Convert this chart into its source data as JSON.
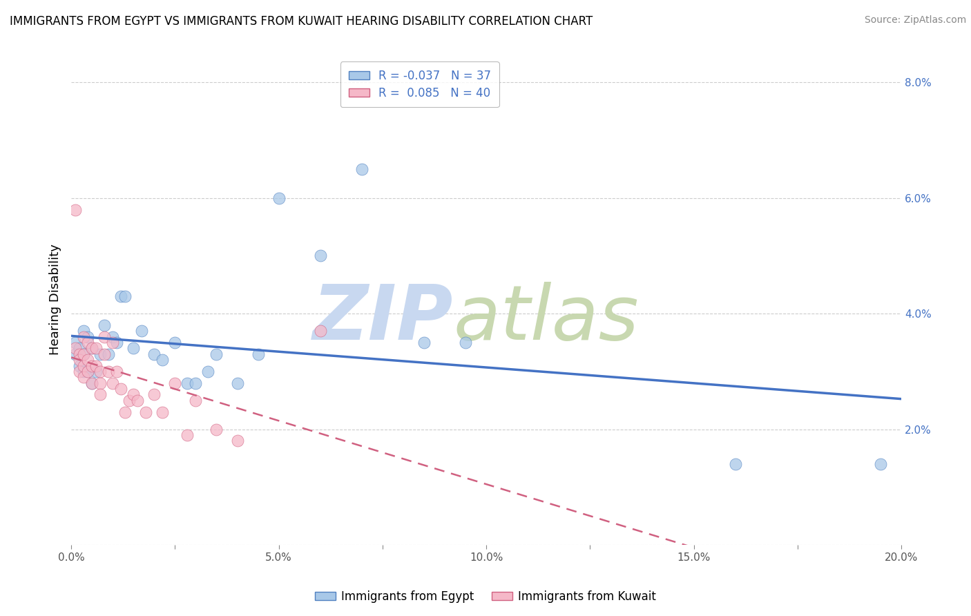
{
  "title": "IMMIGRANTS FROM EGYPT VS IMMIGRANTS FROM KUWAIT HEARING DISABILITY CORRELATION CHART",
  "source": "Source: ZipAtlas.com",
  "legend_bottom": [
    "Immigrants from Egypt",
    "Immigrants from Kuwait"
  ],
  "ylabel": "Hearing Disability",
  "xlim": [
    0.0,
    0.2
  ],
  "ylim": [
    0.0,
    0.085
  ],
  "xticks": [
    0.0,
    0.025,
    0.05,
    0.075,
    0.1,
    0.125,
    0.15,
    0.175,
    0.2
  ],
  "xtick_labels_major": [
    "0.0%",
    "",
    "5.0%",
    "",
    "10.0%",
    "",
    "15.0%",
    "",
    "20.0%"
  ],
  "yticks": [
    0.0,
    0.02,
    0.04,
    0.06,
    0.08
  ],
  "ytick_labels": [
    "",
    "2.0%",
    "4.0%",
    "6.0%",
    "8.0%"
  ],
  "egypt_R": -0.037,
  "egypt_N": 37,
  "kuwait_R": 0.085,
  "kuwait_N": 40,
  "egypt_color": "#a8c8e8",
  "kuwait_color": "#f5b8c8",
  "egypt_edge_color": "#5080c0",
  "kuwait_edge_color": "#d06080",
  "egypt_line_color": "#4472c4",
  "kuwait_line_color": "#d06080",
  "watermark_zip_color": "#c8d8f0",
  "watermark_atlas_color": "#c8d8b0",
  "egypt_x": [
    0.001,
    0.001,
    0.002,
    0.002,
    0.003,
    0.003,
    0.003,
    0.004,
    0.004,
    0.005,
    0.005,
    0.006,
    0.007,
    0.008,
    0.009,
    0.01,
    0.011,
    0.012,
    0.013,
    0.015,
    0.017,
    0.02,
    0.022,
    0.025,
    0.028,
    0.03,
    0.033,
    0.035,
    0.04,
    0.045,
    0.05,
    0.06,
    0.07,
    0.085,
    0.095,
    0.16,
    0.195
  ],
  "egypt_y": [
    0.035,
    0.033,
    0.034,
    0.031,
    0.037,
    0.033,
    0.03,
    0.036,
    0.03,
    0.034,
    0.028,
    0.03,
    0.033,
    0.038,
    0.033,
    0.036,
    0.035,
    0.043,
    0.043,
    0.034,
    0.037,
    0.033,
    0.032,
    0.035,
    0.028,
    0.028,
    0.03,
    0.033,
    0.028,
    0.033,
    0.06,
    0.05,
    0.065,
    0.035,
    0.035,
    0.014,
    0.014
  ],
  "kuwait_x": [
    0.001,
    0.001,
    0.002,
    0.002,
    0.002,
    0.003,
    0.003,
    0.003,
    0.003,
    0.004,
    0.004,
    0.004,
    0.005,
    0.005,
    0.005,
    0.006,
    0.006,
    0.007,
    0.007,
    0.007,
    0.008,
    0.008,
    0.009,
    0.01,
    0.01,
    0.011,
    0.012,
    0.013,
    0.014,
    0.015,
    0.016,
    0.018,
    0.02,
    0.022,
    0.025,
    0.028,
    0.03,
    0.035,
    0.04,
    0.06
  ],
  "kuwait_y": [
    0.058,
    0.034,
    0.033,
    0.032,
    0.03,
    0.036,
    0.033,
    0.031,
    0.029,
    0.035,
    0.032,
    0.03,
    0.034,
    0.031,
    0.028,
    0.034,
    0.031,
    0.03,
    0.028,
    0.026,
    0.036,
    0.033,
    0.03,
    0.035,
    0.028,
    0.03,
    0.027,
    0.023,
    0.025,
    0.026,
    0.025,
    0.023,
    0.026,
    0.023,
    0.028,
    0.019,
    0.025,
    0.02,
    0.018,
    0.037
  ],
  "grid_color": "#cccccc",
  "title_fontsize": 12,
  "source_fontsize": 10,
  "tick_fontsize": 11,
  "legend_fontsize": 12
}
